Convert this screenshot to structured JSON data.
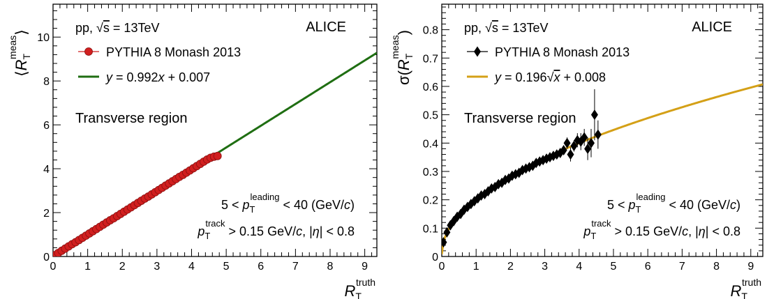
{
  "chart_data": [
    {
      "type": "scatter",
      "x_ticks": [
        0,
        1,
        2,
        3,
        4,
        5,
        6,
        7,
        8,
        9
      ],
      "y_ticks": [
        0,
        2,
        4,
        6,
        8,
        10
      ],
      "xlim": [
        0,
        9.35
      ],
      "ylim": [
        0,
        11.5
      ],
      "xlabel": {
        "main": "R",
        "sub": "T",
        "sup": "truth"
      },
      "ylabel": {
        "open": "⟨",
        "main": "R",
        "sub": "T",
        "sup": "meas",
        "close": "⟩"
      },
      "experiment": "ALICE",
      "energy_label": {
        "pre": "pp, ",
        "root": "s",
        "post": " = 13TeV"
      },
      "region_label": "Transverse region",
      "cut_leading": {
        "pre": "5 < ",
        "sym": "p",
        "sub": "T",
        "sup": "leading",
        "post": " < 40 (GeV/",
        "unit_ital": "c",
        "close": ")"
      },
      "cut_track": {
        "sym": "p",
        "sub": "T",
        "sup": "track",
        "mid": " > 0.15 GeV/",
        "unit_ital": "c",
        "mid2": ", |",
        "eta": "η",
        "post": "| < 0.8"
      },
      "legend": [
        {
          "label": "PYTHIA 8 Monash 2013",
          "marker": "circle",
          "color": "#d11f1f"
        },
        {
          "y_sym": "y",
          "pre": " = 0.992",
          "x_sym": "x",
          "post": " + 0.007",
          "marker": "line",
          "color": "#1f6e12"
        }
      ],
      "fit": {
        "slope": 0.992,
        "intercept": 0.007
      },
      "series": [
        {
          "x": [
            0.05,
            0.15,
            0.25,
            0.35,
            0.45,
            0.55,
            0.65,
            0.75,
            0.85,
            0.95,
            1.05,
            1.15,
            1.25,
            1.35,
            1.45,
            1.55,
            1.65,
            1.75,
            1.85,
            1.95,
            2.05,
            2.15,
            2.25,
            2.35,
            2.45,
            2.55,
            2.65,
            2.75,
            2.85,
            2.95,
            3.05,
            3.15,
            3.25,
            3.35,
            3.45,
            3.55,
            3.65,
            3.75,
            3.85,
            3.95,
            4.05,
            4.15,
            4.25,
            4.35,
            4.45,
            4.55,
            4.65,
            4.75
          ],
          "y": [
            0.06,
            0.16,
            0.26,
            0.36,
            0.46,
            0.56,
            0.65,
            0.75,
            0.85,
            0.95,
            1.05,
            1.15,
            1.25,
            1.35,
            1.45,
            1.55,
            1.65,
            1.74,
            1.84,
            1.94,
            2.04,
            2.14,
            2.24,
            2.34,
            2.44,
            2.54,
            2.64,
            2.73,
            2.83,
            2.93,
            3.03,
            3.13,
            3.23,
            3.33,
            3.43,
            3.53,
            3.63,
            3.72,
            3.82,
            3.92,
            4.02,
            4.12,
            4.22,
            4.32,
            4.42,
            4.5,
            4.55,
            4.58
          ]
        }
      ]
    },
    {
      "type": "scatter",
      "x_ticks": [
        0,
        1,
        2,
        3,
        4,
        5,
        6,
        7,
        8,
        9
      ],
      "y_ticks": [
        0,
        0.1,
        0.2,
        0.3,
        0.4,
        0.5,
        0.6,
        0.7,
        0.8
      ],
      "xlim": [
        0,
        9.35
      ],
      "ylim": [
        0,
        0.89
      ],
      "xlabel": {
        "main": "R",
        "sub": "T",
        "sup": "truth"
      },
      "ylabel": {
        "open": "σ(",
        "main": "R",
        "sub": "T",
        "sup": "meas",
        "close": ")"
      },
      "experiment": "ALICE",
      "energy_label": {
        "pre": "pp, ",
        "root": "s",
        "post": " = 13TeV"
      },
      "region_label": "Transverse region",
      "cut_leading": {
        "pre": "5 < ",
        "sym": "p",
        "sub": "T",
        "sup": "leading",
        "post": " < 40 (GeV/",
        "unit_ital": "c",
        "close": ")"
      },
      "cut_track": {
        "sym": "p",
        "sub": "T",
        "sup": "track",
        "mid": " > 0.15 GeV/",
        "unit_ital": "c",
        "mid2": ", |",
        "eta": "η",
        "post": "| < 0.8"
      },
      "legend": [
        {
          "label": "PYTHIA 8 Monash 2013",
          "marker": "diamond",
          "color": "#000000"
        },
        {
          "y_sym": "y",
          "pre": " = 0.196",
          "x_sym": "x",
          "post": " + 0.008",
          "marker": "line",
          "color": "#d4a017"
        }
      ],
      "fit": {
        "coef": 0.196,
        "intercept": 0.008
      },
      "series": [
        {
          "x": [
            0.05,
            0.15,
            0.25,
            0.35,
            0.45,
            0.55,
            0.65,
            0.75,
            0.85,
            0.95,
            1.05,
            1.15,
            1.25,
            1.35,
            1.45,
            1.55,
            1.65,
            1.75,
            1.85,
            1.95,
            2.05,
            2.15,
            2.25,
            2.35,
            2.45,
            2.55,
            2.65,
            2.75,
            2.85,
            2.95,
            3.05,
            3.15,
            3.25,
            3.35,
            3.45,
            3.55,
            3.65,
            3.75,
            3.85,
            3.95,
            4.05,
            4.15,
            4.25,
            4.35,
            4.45,
            4.55
          ],
          "y": [
            0.05,
            0.085,
            0.11,
            0.125,
            0.14,
            0.15,
            0.165,
            0.175,
            0.185,
            0.195,
            0.205,
            0.215,
            0.22,
            0.23,
            0.24,
            0.245,
            0.255,
            0.26,
            0.27,
            0.275,
            0.285,
            0.29,
            0.295,
            0.305,
            0.31,
            0.315,
            0.32,
            0.33,
            0.335,
            0.34,
            0.345,
            0.35,
            0.355,
            0.36,
            0.365,
            0.375,
            0.4,
            0.36,
            0.39,
            0.41,
            0.405,
            0.42,
            0.38,
            0.4,
            0.5,
            0.43
          ],
          "err": [
            0.01,
            0.008,
            0.006,
            0.005,
            0.005,
            0.005,
            0.005,
            0.005,
            0.005,
            0.005,
            0.005,
            0.005,
            0.005,
            0.005,
            0.005,
            0.005,
            0.005,
            0.005,
            0.005,
            0.005,
            0.005,
            0.005,
            0.005,
            0.005,
            0.005,
            0.005,
            0.005,
            0.006,
            0.006,
            0.007,
            0.008,
            0.008,
            0.01,
            0.01,
            0.012,
            0.015,
            0.02,
            0.025,
            0.02,
            0.025,
            0.03,
            0.03,
            0.04,
            0.05,
            0.09,
            0.05
          ]
        }
      ]
    }
  ]
}
